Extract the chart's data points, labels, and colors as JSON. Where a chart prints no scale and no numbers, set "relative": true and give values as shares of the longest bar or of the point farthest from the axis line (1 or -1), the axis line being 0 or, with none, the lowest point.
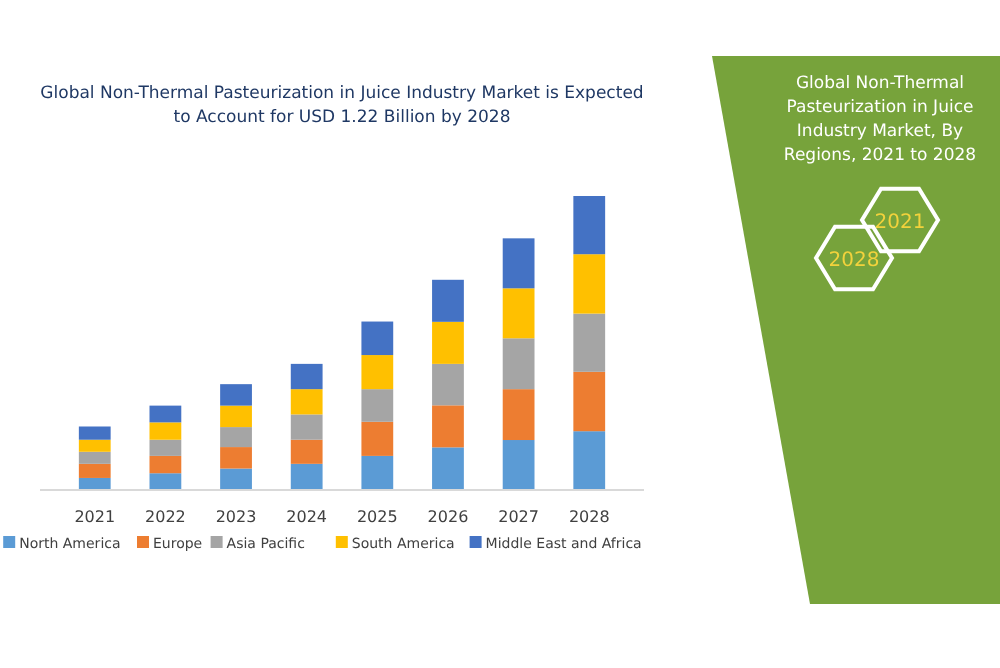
{
  "chart_data": {
    "type": "bar",
    "stacked": true,
    "relative": true,
    "title": "Global Non-Thermal Pasteurization in Juice Industry Market is Expected to Account for USD 1.22 Billion by 2028",
    "subtitle": "Global Non-Thermal Pasteurization in Juice Industry Market, By Regions, 2021 to 2028",
    "annotations": [
      "2021",
      "2028"
    ],
    "legend": "bottom",
    "categories": [
      "2021",
      "2022",
      "2023",
      "2024",
      "2025",
      "2026",
      "2027",
      "2028"
    ],
    "series": [
      {
        "name": "North America",
        "color": "#5b9bd5",
        "values": [
          0.041,
          0.057,
          0.073,
          0.089,
          0.116,
          0.145,
          0.17,
          0.2
        ]
      },
      {
        "name": "Europe",
        "color": "#ed7d31",
        "values": [
          0.048,
          0.059,
          0.073,
          0.082,
          0.116,
          0.143,
          0.173,
          0.202
        ]
      },
      {
        "name": "Asia Pacific",
        "color": "#a5a5a5",
        "values": [
          0.041,
          0.055,
          0.068,
          0.086,
          0.111,
          0.141,
          0.173,
          0.198
        ]
      },
      {
        "name": "South America",
        "color": "#ffc000",
        "values": [
          0.041,
          0.059,
          0.073,
          0.086,
          0.116,
          0.143,
          0.17,
          0.202
        ]
      },
      {
        "name": "Middle East and Africa",
        "color": "#4472c4",
        "values": [
          0.045,
          0.057,
          0.073,
          0.086,
          0.114,
          0.143,
          0.17,
          0.198
        ]
      }
    ]
  }
}
